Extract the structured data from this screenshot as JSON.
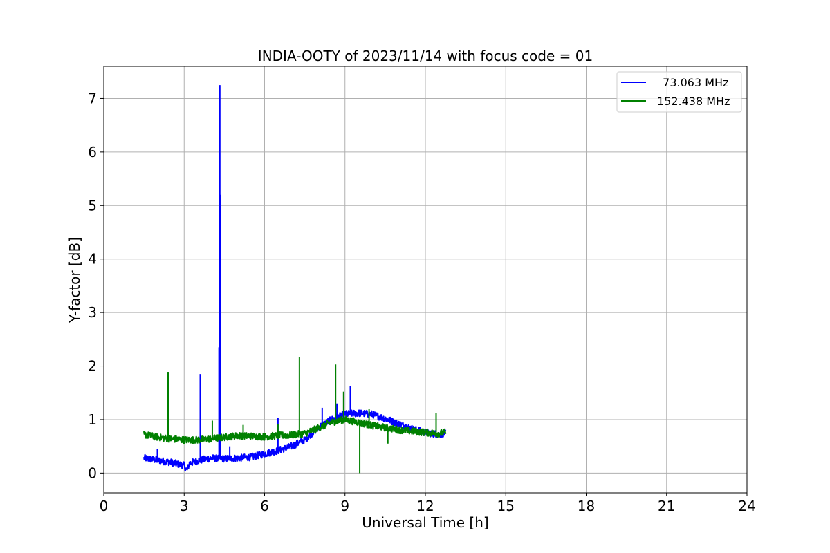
{
  "chart_data": {
    "type": "line",
    "title": "INDIA-OOTY of 2023/11/14 with focus code = 01",
    "xlabel": "Universal Time [h]",
    "ylabel": "Y-factor [dB]",
    "xlim": [
      0,
      24
    ],
    "ylim": [
      -0.37,
      7.6
    ],
    "xticks": [
      0,
      3,
      6,
      9,
      12,
      15,
      18,
      21,
      24
    ],
    "yticks": [
      0,
      1,
      2,
      3,
      4,
      5,
      6,
      7
    ],
    "grid": true,
    "legend_position": "top-right",
    "series": [
      {
        "name": "  73.063 MHz",
        "color": "#0000ff",
        "x": [
          1.5,
          2.0,
          2.5,
          3.0,
          3.1,
          3.2,
          3.5,
          4.0,
          4.5,
          5.0,
          5.5,
          6.0,
          6.5,
          7.0,
          7.5,
          8.0,
          8.5,
          9.0,
          9.5,
          10.0,
          10.5,
          11.0,
          11.5,
          12.0,
          12.5,
          12.75
        ],
        "values": [
          0.28,
          0.24,
          0.2,
          0.14,
          0.05,
          0.18,
          0.23,
          0.28,
          0.27,
          0.28,
          0.3,
          0.36,
          0.42,
          0.5,
          0.62,
          0.85,
          1.0,
          1.1,
          1.12,
          1.1,
          1.02,
          0.92,
          0.83,
          0.76,
          0.72,
          0.75
        ],
        "spikes": [
          [
            2.0,
            0.45
          ],
          [
            3.6,
            1.85
          ],
          [
            4.3,
            2.35
          ],
          [
            4.33,
            7.25
          ],
          [
            4.36,
            5.2
          ],
          [
            4.7,
            0.5
          ],
          [
            6.5,
            1.03
          ],
          [
            7.3,
            0.6
          ],
          [
            8.15,
            1.22
          ],
          [
            8.7,
            1.3
          ],
          [
            9.2,
            1.63
          ],
          [
            12.4,
            0.95
          ]
        ]
      },
      {
        "name": "152.438 MHz",
        "color": "#008000",
        "x": [
          1.5,
          2.0,
          2.5,
          3.0,
          3.5,
          4.0,
          4.5,
          5.0,
          5.5,
          6.0,
          6.5,
          7.0,
          7.5,
          8.0,
          8.5,
          9.0,
          9.5,
          10.0,
          10.5,
          11.0,
          11.5,
          12.0,
          12.5,
          12.75
        ],
        "values": [
          0.72,
          0.67,
          0.64,
          0.62,
          0.62,
          0.64,
          0.67,
          0.7,
          0.69,
          0.68,
          0.7,
          0.71,
          0.74,
          0.84,
          0.95,
          1.0,
          0.95,
          0.89,
          0.85,
          0.81,
          0.78,
          0.76,
          0.74,
          0.76
        ],
        "spikes": [
          [
            2.4,
            1.89
          ],
          [
            4.05,
            0.98
          ],
          [
            5.2,
            0.9
          ],
          [
            6.5,
            0.92
          ],
          [
            7.3,
            2.17
          ],
          [
            8.65,
            2.03
          ],
          [
            8.95,
            1.52
          ],
          [
            9.55,
            0.0
          ],
          [
            9.9,
            1.2
          ],
          [
            10.6,
            0.55
          ],
          [
            12.4,
            1.12
          ]
        ]
      }
    ]
  }
}
